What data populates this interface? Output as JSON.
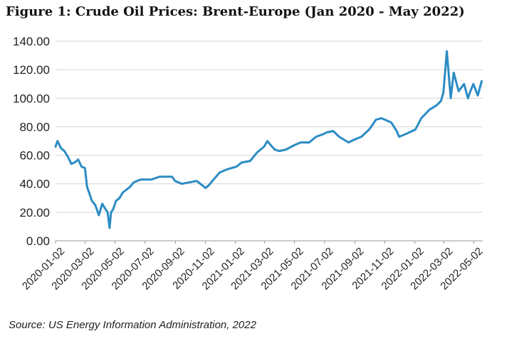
{
  "chart_data": {
    "type": "line",
    "title": "Figure 1: Crude Oil Prices: Brent-Europe (Jan 2020 - May 2022)",
    "source": "Source: US Energy Information Administration, 2022",
    "xlabel": "",
    "ylabel": "",
    "ylim": [
      0,
      140
    ],
    "yticks": [
      "0.00",
      "20.00",
      "40.00",
      "60.00",
      "80.00",
      "100.00",
      "120.00",
      "140.00"
    ],
    "xticks": [
      "2020-01-02",
      "2020-03-02",
      "2020-05-02",
      "2020-07-02",
      "2020-09-02",
      "2020-11-02",
      "2021-01-02",
      "2021-03-02",
      "2021-05-02",
      "2021-07-02",
      "2021-09-02",
      "2021-11-02",
      "2022-01-02",
      "2022-03-02",
      "2022-05-02"
    ],
    "grid": "horizontal",
    "line_color": "#2b8cc4",
    "series": [
      {
        "x": [
          "2020-01-02",
          "2020-01-06",
          "2020-01-13",
          "2020-01-20",
          "2020-01-27",
          "2020-02-03",
          "2020-02-10",
          "2020-02-17",
          "2020-02-24",
          "2020-03-02",
          "2020-03-06",
          "2020-03-09",
          "2020-03-16",
          "2020-03-23",
          "2020-03-30",
          "2020-04-06",
          "2020-04-13",
          "2020-04-17",
          "2020-04-21",
          "2020-04-24",
          "2020-04-28",
          "2020-05-04",
          "2020-05-11",
          "2020-05-18",
          "2020-05-26",
          "2020-06-02",
          "2020-06-09",
          "2020-06-16",
          "2020-06-23",
          "2020-07-01",
          "2020-07-15",
          "2020-08-01",
          "2020-08-15",
          "2020-08-26",
          "2020-09-01",
          "2020-09-08",
          "2020-09-15",
          "2020-09-30",
          "2020-10-15",
          "2020-10-30",
          "2020-11-02",
          "2020-11-09",
          "2020-11-16",
          "2020-12-01",
          "2020-12-15",
          "2021-01-04",
          "2021-01-15",
          "2021-02-01",
          "2021-02-15",
          "2021-03-01",
          "2021-03-08",
          "2021-03-15",
          "2021-03-23",
          "2021-04-01",
          "2021-04-15",
          "2021-05-01",
          "2021-05-15",
          "2021-06-01",
          "2021-06-15",
          "2021-07-01",
          "2021-07-06",
          "2021-07-20",
          "2021-08-01",
          "2021-08-20",
          "2021-09-01",
          "2021-09-15",
          "2021-10-01",
          "2021-10-15",
          "2021-10-26",
          "2021-11-15",
          "2021-11-26",
          "2021-12-01",
          "2021-12-15",
          "2022-01-03",
          "2022-01-15",
          "2022-02-01",
          "2022-02-15",
          "2022-02-24",
          "2022-03-01",
          "2022-03-08",
          "2022-03-16",
          "2022-03-22",
          "2022-04-01",
          "2022-04-12",
          "2022-04-20",
          "2022-04-25",
          "2022-05-01",
          "2022-05-10",
          "2022-05-18"
        ],
        "values": [
          66,
          70,
          65,
          63,
          59,
          54,
          55,
          57,
          52,
          51,
          38,
          35,
          28,
          25,
          18,
          26,
          22,
          20,
          9,
          20,
          22,
          28,
          30,
          34,
          36,
          38,
          41,
          42,
          43,
          43,
          43,
          45,
          45,
          45,
          42,
          41,
          40,
          41,
          42,
          38,
          37,
          39,
          42,
          48,
          50,
          52,
          55,
          56,
          62,
          66,
          70,
          67,
          64,
          63,
          64,
          67,
          69,
          69,
          73,
          75,
          76,
          77,
          73,
          69,
          71,
          73,
          78,
          85,
          86,
          83,
          77,
          73,
          75,
          78,
          86,
          92,
          95,
          98,
          104,
          133,
          100,
          118,
          105,
          110,
          100,
          105,
          110,
          102,
          112
        ]
      }
    ]
  }
}
